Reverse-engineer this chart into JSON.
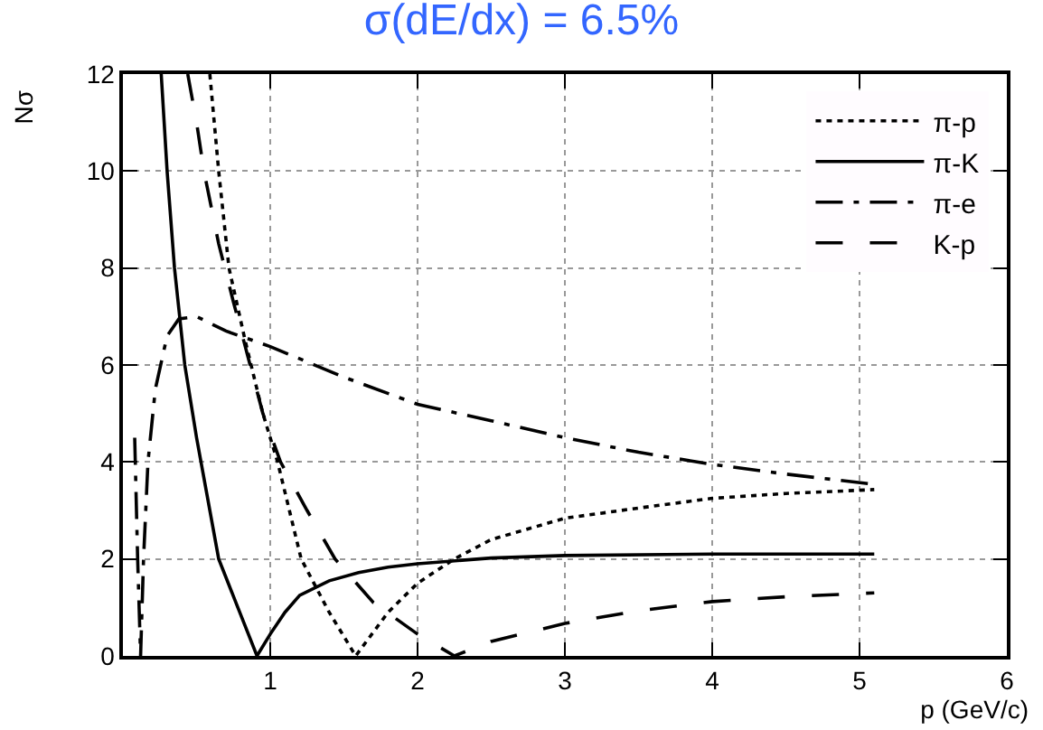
{
  "chart_data": {
    "type": "line",
    "title": "σ(dE/dx) = 6.5%",
    "xlabel": "p (GeV/c)",
    "ylabel": "Nσ",
    "xlim": [
      0,
      6
    ],
    "ylim": [
      0,
      12
    ],
    "xticks": [
      1,
      2,
      3,
      4,
      5,
      6
    ],
    "yticks": [
      0,
      2,
      4,
      6,
      8,
      10,
      12
    ],
    "grid": true,
    "legend": "top right",
    "marker": "none",
    "series": [
      {
        "name": "π-p",
        "color": "#000000",
        "line_style": "dotted",
        "x": [
          0.59,
          0.65,
          0.72,
          0.83,
          0.95,
          1.05,
          1.21,
          1.4,
          1.58,
          1.8,
          2,
          2.25,
          2.5,
          3,
          3.5,
          4,
          4.5,
          5.1
        ],
        "values": [
          12,
          10,
          8,
          6.5,
          5,
          4,
          2,
          0.9,
          0,
          0.9,
          1.5,
          2,
          2.4,
          2.84,
          3.05,
          3.25,
          3.35,
          3.43
        ]
      },
      {
        "name": "π-K",
        "color": "#000000",
        "line_style": "solid",
        "x": [
          0.26,
          0.3,
          0.35,
          0.42,
          0.5,
          0.56,
          0.65,
          0.78,
          0.91,
          1,
          1.1,
          1.2,
          1.4,
          1.6,
          1.8,
          2,
          2.5,
          3,
          4,
          5.1
        ],
        "values": [
          12,
          10,
          8,
          6,
          4.5,
          3.5,
          2,
          1,
          0,
          0.45,
          0.9,
          1.25,
          1.55,
          1.72,
          1.83,
          1.9,
          2.02,
          2.07,
          2.1,
          2.1
        ]
      },
      {
        "name": "π-e",
        "color": "#000000",
        "line_style": "dashdot",
        "x": [
          0.08,
          0.1,
          0.12,
          0.14,
          0.17,
          0.22,
          0.3,
          0.38,
          0.5,
          0.7,
          1,
          1.5,
          2,
          2.5,
          3,
          3.5,
          4,
          4.5,
          5.1
        ],
        "values": [
          4.5,
          2,
          0,
          2,
          4,
          5.5,
          6.6,
          6.95,
          7,
          6.7,
          6.38,
          5.75,
          5.19,
          4.85,
          4.5,
          4.2,
          3.95,
          3.75,
          3.54
        ]
      },
      {
        "name": "K-p",
        "color": "#000000",
        "line_style": "dashed",
        "x": [
          0.44,
          0.5,
          0.55,
          0.65,
          0.75,
          0.82,
          0.95,
          1.07,
          1.25,
          1.44,
          1.7,
          2,
          2.25,
          2.5,
          3,
          3.5,
          4,
          4.5,
          5.1
        ],
        "values": [
          12,
          11,
          10,
          8.5,
          7.3,
          6.5,
          5,
          4,
          3,
          2,
          1.1,
          0.45,
          0,
          0.3,
          0.67,
          0.93,
          1.12,
          1.22,
          1.3
        ]
      }
    ]
  }
}
